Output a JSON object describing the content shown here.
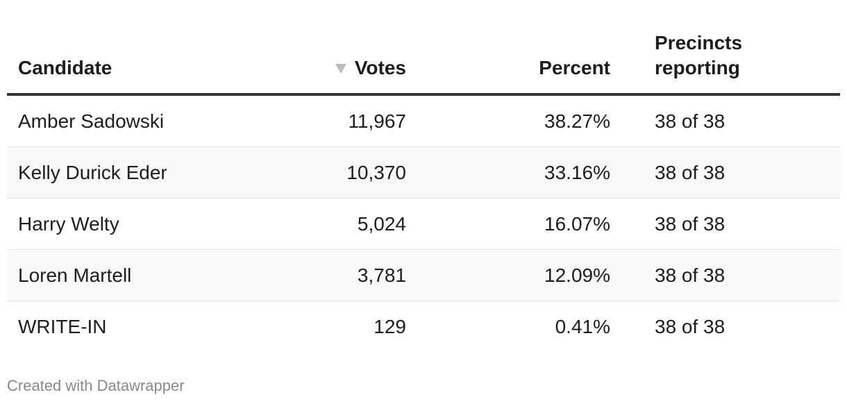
{
  "table": {
    "headers": {
      "candidate": "Candidate",
      "votes": "Votes",
      "percent": "Percent",
      "precincts_line1": "Precincts",
      "precincts_line2": "reporting"
    },
    "rows": [
      {
        "candidate": "Amber Sadowski",
        "votes": "11,967",
        "percent": "38.27%",
        "precincts": "38 of 38"
      },
      {
        "candidate": "Kelly Durick Eder",
        "votes": "10,370",
        "percent": "33.16%",
        "precincts": "38 of 38"
      },
      {
        "candidate": "Harry Welty",
        "votes": "5,024",
        "percent": "16.07%",
        "precincts": "38 of 38"
      },
      {
        "candidate": "Loren Martell",
        "votes": "3,781",
        "percent": "12.09%",
        "precincts": "38 of 38"
      },
      {
        "candidate": "WRITE-IN",
        "votes": "129",
        "percent": "0.41%",
        "precincts": "38 of 38"
      }
    ]
  },
  "footer": {
    "credit": "Created with Datawrapper"
  },
  "sort": {
    "icon": "sort-descending-icon",
    "column": "votes"
  },
  "colors": {
    "header_rule": "#333333",
    "stripe": "#f8f8f8",
    "sort_icon": "#bdbdbd",
    "footer_text": "#888888"
  }
}
